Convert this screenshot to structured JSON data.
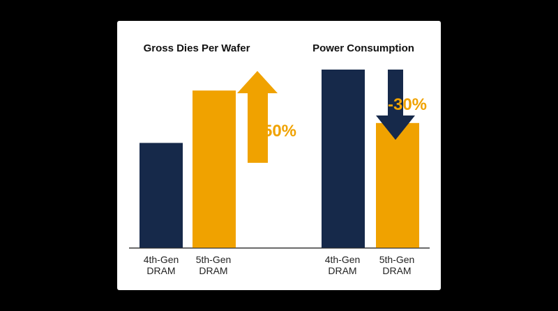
{
  "colors": {
    "gen4": "#16294a",
    "gen5": "#f0a200",
    "axis": "#333333",
    "card": "#ffffff",
    "background": "#000000"
  },
  "chart_data": [
    {
      "type": "bar",
      "title": "Gross Dies Per Wafer",
      "categories": [
        "4th-Gen DRAM",
        "5th-Gen DRAM"
      ],
      "values": [
        100,
        150
      ],
      "ylim": [
        0,
        170
      ],
      "grid": false,
      "annotation": {
        "text": "+50%",
        "direction": "up",
        "icon": "arrow-up-icon"
      }
    },
    {
      "type": "bar",
      "title": "Power Consumption",
      "categories": [
        "4th-Gen DRAM",
        "5th-Gen DRAM"
      ],
      "values": [
        100,
        70
      ],
      "ylim": [
        0,
        100
      ],
      "grid": false,
      "annotation": {
        "text": "-30%",
        "direction": "down",
        "icon": "arrow-down-icon"
      }
    }
  ]
}
